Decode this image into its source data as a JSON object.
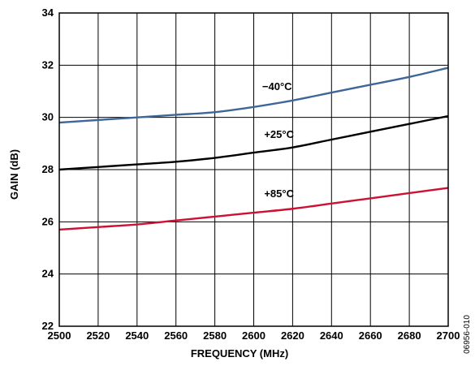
{
  "chart_data": {
    "type": "line",
    "xlabel": "FREQUENCY (MHz)",
    "ylabel": "GAIN (dB)",
    "xlim": [
      2500,
      2700
    ],
    "ylim": [
      22,
      34
    ],
    "xticks": [
      2500,
      2520,
      2540,
      2560,
      2580,
      2600,
      2620,
      2640,
      2660,
      2680,
      2700
    ],
    "yticks": [
      22,
      24,
      26,
      28,
      30,
      32,
      34
    ],
    "grid": true,
    "series": [
      {
        "name": "−40°C",
        "color": "#3f6699",
        "x": [
          2500,
          2520,
          2540,
          2560,
          2580,
          2600,
          2620,
          2640,
          2660,
          2680,
          2700
        ],
        "y": [
          29.8,
          29.9,
          30.0,
          30.1,
          30.2,
          30.4,
          30.65,
          30.95,
          31.25,
          31.55,
          31.9
        ]
      },
      {
        "name": "+25°C",
        "color": "#000000",
        "x": [
          2500,
          2520,
          2540,
          2560,
          2580,
          2600,
          2620,
          2640,
          2660,
          2680,
          2700
        ],
        "y": [
          28.0,
          28.1,
          28.2,
          28.3,
          28.45,
          28.65,
          28.85,
          29.15,
          29.45,
          29.75,
          30.05
        ]
      },
      {
        "name": "+85°C",
        "color": "#cc1133",
        "x": [
          2500,
          2520,
          2540,
          2560,
          2580,
          2600,
          2620,
          2640,
          2660,
          2680,
          2700
        ],
        "y": [
          25.7,
          25.8,
          25.9,
          26.05,
          26.2,
          26.35,
          26.5,
          26.7,
          26.9,
          27.1,
          27.3
        ]
      }
    ],
    "figure_id": "06956-010"
  }
}
